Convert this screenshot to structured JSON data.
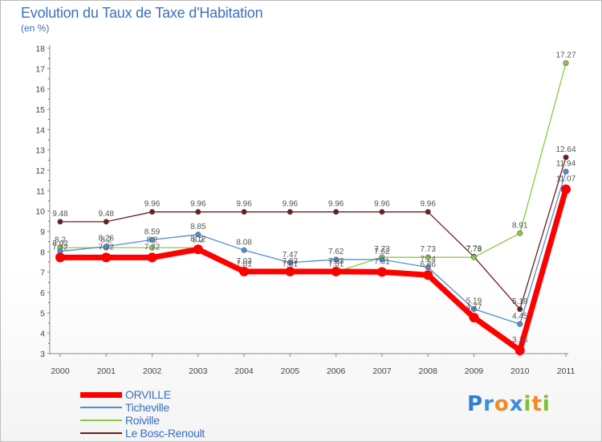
{
  "chart_data": {
    "type": "line",
    "title": "Evolution du Taux de Taxe d'Habitation",
    "subtitle": "(en %)",
    "xlabel": "",
    "ylabel": "",
    "categories": [
      "2000",
      "2001",
      "2002",
      "2003",
      "2004",
      "2005",
      "2006",
      "2007",
      "2008",
      "2009",
      "2010",
      "2011"
    ],
    "ylim": [
      3,
      18
    ],
    "yticks": [
      "3",
      "4",
      "5",
      "6",
      "7",
      "8",
      "9",
      "10",
      "11",
      "12",
      "13",
      "14",
      "15",
      "16",
      "17",
      "18"
    ],
    "grid": false,
    "series": [
      {
        "name": "ORVILLE",
        "color": "#ff0000",
        "values": [
          7.72,
          7.72,
          7.72,
          8.12,
          7.03,
          7.03,
          7.03,
          7.01,
          6.86,
          4.77,
          3.16,
          11.07
        ],
        "labels": [
          "7.72",
          "7.72",
          "7.72",
          "8.12",
          "7.03",
          "7.03",
          "7.03",
          "7.01",
          "6.86",
          "4.77",
          "3.16",
          "11.07"
        ]
      },
      {
        "name": "Ticheville",
        "color": "#4d8fd6",
        "values": [
          8.02,
          8.26,
          8.59,
          8.85,
          8.08,
          7.47,
          7.62,
          7.62,
          7.24,
          5.19,
          4.45,
          11.94
        ],
        "labels": [
          "8.02",
          "8.26",
          "8.59",
          "8.85",
          "8.08",
          "7.47",
          "7.62",
          "7.62",
          "7.24",
          "5.19",
          "4.45",
          "11.94"
        ]
      },
      {
        "name": "Roiville",
        "color": "#88cc44",
        "values": [
          8.2,
          8.2,
          8.2,
          8.2,
          7.01,
          7.01,
          7.01,
          7.73,
          7.73,
          7.73,
          8.91,
          17.27
        ],
        "labels": [
          "8.2",
          "8.2",
          "8.2",
          "8.2",
          "7.01",
          "7.01",
          "7.01",
          "7.73",
          "7.73",
          "7.73",
          "8.91",
          "17.27"
        ]
      },
      {
        "name": "Le Bosc-Renoult",
        "color": "#6b1f1f",
        "values": [
          9.48,
          9.48,
          9.96,
          9.96,
          9.96,
          9.96,
          9.96,
          9.96,
          9.96,
          7.76,
          5.18,
          12.64
        ],
        "labels": [
          "9.48",
          "9.48",
          "9.96",
          "9.96",
          "9.96",
          "9.96",
          "9.96",
          "9.96",
          "9.96",
          "7.76",
          "5.18",
          "12.64"
        ]
      }
    ],
    "legend_position": "bottom-left"
  },
  "logo": {
    "text": "Proxiti",
    "colors": [
      "#2f7fd0",
      "#3b8fd8",
      "#f08a24",
      "#3b8fd8",
      "#80c030",
      "#f08a24",
      "#80c030"
    ]
  }
}
